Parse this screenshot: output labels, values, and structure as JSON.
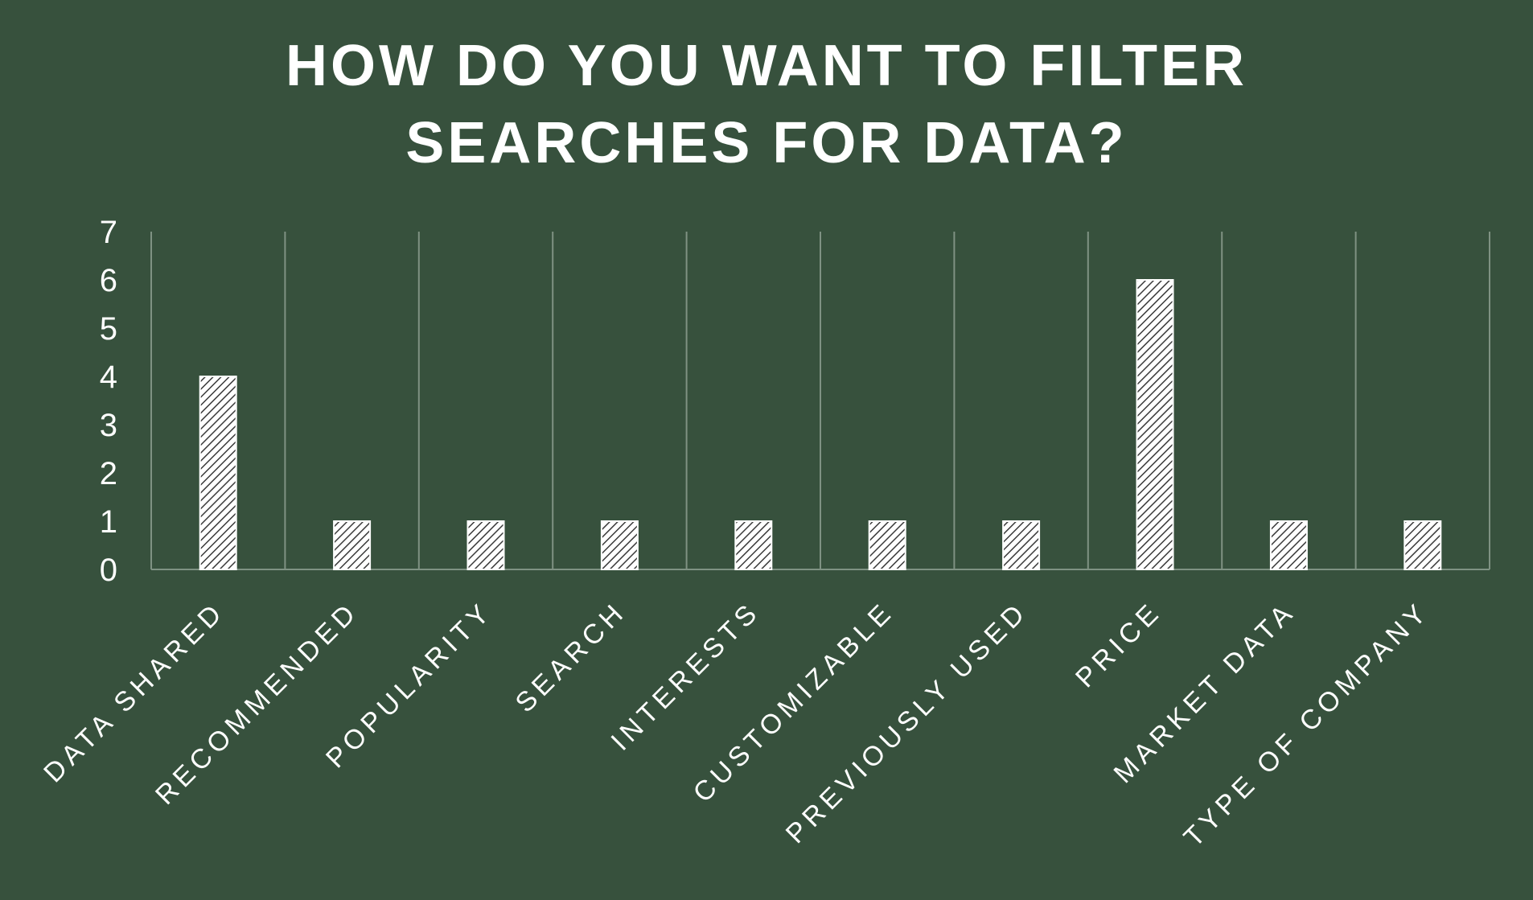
{
  "chart_data": {
    "type": "bar",
    "title_lines": [
      "HOW DO YOU WANT TO FILTER",
      "SEARCHES FOR DATA?"
    ],
    "categories": [
      "DATA SHARED",
      "RECOMMENDED",
      "POPULARITY",
      "SEARCH",
      "INTERESTS",
      "CUSTOMIZABLE",
      "PREVIOUSLY USED",
      "PRICE",
      "MARKET DATA",
      "TYPE OF COMPANY"
    ],
    "values": [
      4,
      1,
      1,
      1,
      1,
      1,
      1,
      6,
      1,
      1
    ],
    "ylim": [
      0,
      7
    ],
    "yticks": [
      "0",
      "1",
      "2",
      "3",
      "4",
      "5",
      "6",
      "7"
    ],
    "xlabel": "",
    "ylabel": "",
    "grid": "vertical separators",
    "legend": "none",
    "bar_pattern": "diagonal-hatch"
  },
  "colors": {
    "background": "#37513D",
    "text": "#FFFFFF",
    "gridline": "#7F9283",
    "bar_fill": "#FFFFFF",
    "bar_hatch": "#3A3A3A"
  }
}
